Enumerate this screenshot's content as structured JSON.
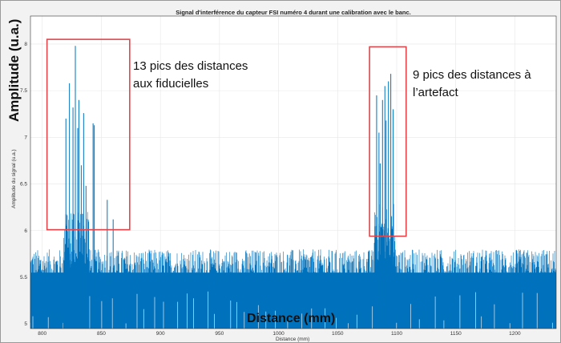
{
  "chart_data": {
    "type": "line",
    "title": "Signal d'interférence du capteur FSI numéro 4 durant une calibration avec le banc.",
    "xlabel": "Distance (mm)",
    "ylabel": "Amplitude du signal (u.a.)",
    "xlim": [
      790,
      1235
    ],
    "ylim": [
      4.95,
      8.3
    ],
    "x_ticks": [
      800,
      850,
      900,
      950,
      1000,
      1050,
      1100,
      1150,
      1200
    ],
    "y_ticks": [
      5,
      5.5,
      6,
      6.5,
      7,
      7.5,
      8
    ],
    "x_tick_labels": [
      "800",
      "850",
      "900",
      "950",
      "1000",
      "1050",
      "1100",
      "1150",
      "1200"
    ],
    "y_tick_labels": [
      "5",
      "5.5",
      "6",
      "6.5",
      "7",
      "7.5",
      "8"
    ],
    "grid": true,
    "noise_floor_range": [
      4.95,
      5.8
    ],
    "series": [
      {
        "color": "#0072bd",
        "peaks_fiducials": [
          {
            "x": 820,
            "y": 7.2
          },
          {
            "x": 823,
            "y": 7.58
          },
          {
            "x": 826,
            "y": 7.32
          },
          {
            "x": 828,
            "y": 7.98
          },
          {
            "x": 830,
            "y": 7.1
          },
          {
            "x": 831,
            "y": 7.4
          },
          {
            "x": 833,
            "y": 6.7
          },
          {
            "x": 835,
            "y": 7.26
          },
          {
            "x": 837,
            "y": 6.48
          },
          {
            "x": 843,
            "y": 7.15
          },
          {
            "x": 844,
            "y": 7.13
          },
          {
            "x": 855,
            "y": 6.33
          },
          {
            "x": 860,
            "y": 6.12
          }
        ],
        "peaks_artifact": [
          {
            "x": 1083,
            "y": 7.45
          },
          {
            "x": 1085,
            "y": 7.05
          },
          {
            "x": 1086,
            "y": 6.72
          },
          {
            "x": 1088,
            "y": 7.4
          },
          {
            "x": 1090,
            "y": 7.55
          },
          {
            "x": 1091,
            "y": 7.18
          },
          {
            "x": 1093,
            "y": 7.6
          },
          {
            "x": 1095,
            "y": 7.68
          },
          {
            "x": 1097,
            "y": 7.3
          }
        ]
      }
    ],
    "annotations": [
      {
        "text": "13 pics des distances\naux fiducielles",
        "box_x": [
          804,
          874
        ],
        "box_y": [
          6.01,
          8.05
        ]
      },
      {
        "text": "9 pics des distances à\nl’artefact",
        "box_x": [
          1077,
          1108
        ],
        "box_y": [
          5.94,
          7.97
        ]
      }
    ],
    "overlay_labels": {
      "ylabel": "Amplitude (u.a.)",
      "xlabel": "Distance (mm)"
    }
  }
}
